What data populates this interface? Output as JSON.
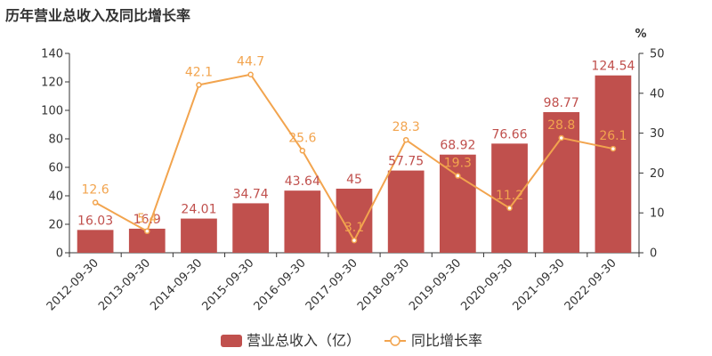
{
  "chart_data": {
    "type": "bar+line",
    "title": "历年营业总收入及同比增长率",
    "categories": [
      "2012-09-30",
      "2013-09-30",
      "2014-09-30",
      "2015-09-30",
      "2016-09-30",
      "2017-09-30",
      "2018-09-30",
      "2019-09-30",
      "2020-09-30",
      "2021-09-30",
      "2022-09-30"
    ],
    "series": [
      {
        "name": "营业总收入（亿）",
        "type": "bar",
        "axis": "left",
        "values": [
          16.03,
          16.9,
          24.01,
          34.74,
          43.64,
          45,
          57.75,
          68.92,
          76.66,
          98.77,
          124.54
        ],
        "labels": [
          "16.03",
          "16.9",
          "24.01",
          "34.74",
          "43.64",
          "45",
          "57.75",
          "68.92",
          "76.66",
          "98.77",
          "124.54"
        ],
        "color": "#c0504d"
      },
      {
        "name": "同比增长率",
        "type": "line",
        "axis": "right",
        "values": [
          12.6,
          5.4,
          42.1,
          44.7,
          25.6,
          3.1,
          28.3,
          19.3,
          11.2,
          28.8,
          26.1
        ],
        "labels": [
          "12.6",
          "5.4",
          "42.1",
          "44.7",
          "25.6",
          "3.1",
          "28.3",
          "19.3",
          "11.2",
          "28.8",
          "26.1"
        ],
        "color": "#f2a44e"
      }
    ],
    "left_axis": {
      "min": 0,
      "max": 140,
      "ticks": [
        "0",
        "20",
        "40",
        "60",
        "80",
        "100",
        "120",
        "140"
      ]
    },
    "right_axis": {
      "min": 0,
      "max": 50,
      "unit": "%",
      "ticks": [
        "0",
        "10",
        "20",
        "30",
        "40",
        "50"
      ]
    },
    "legend": {
      "position": "bottom",
      "bar_label": "营业总收入（亿）",
      "line_label": "同比增长率"
    },
    "grid": false
  }
}
